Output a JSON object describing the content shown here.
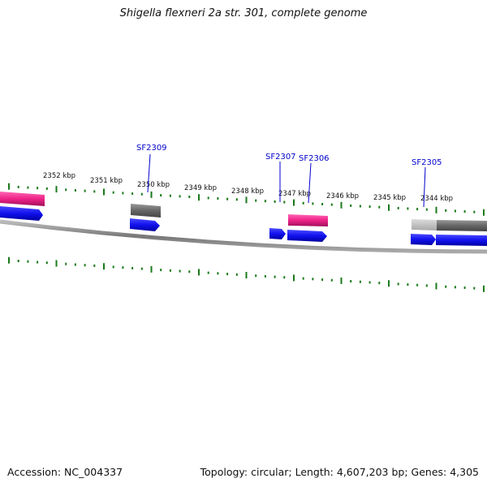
{
  "title": "Shigella flexneri 2a str. 301, complete genome",
  "footer": {
    "accession": "Accession: NC_004337",
    "summary": "Topology: circular; Length: 4,607,203 bp; Genes: 4,305"
  },
  "colors": {
    "tick": "#1a7a1a",
    "backbone": "#8a8a8a",
    "gene_pink": "#ee2288",
    "gene_blue": "#1111ee",
    "gene_gray": "#666666",
    "gene_lightgray": "#bbbbbb",
    "label_blue": "#0000cc"
  },
  "ruler": {
    "unit": "kbp",
    "labels": [
      "2352 kbp",
      "2351 kbp",
      "2350 kbp",
      "2349 kbp",
      "2348 kbp",
      "2347 kbp",
      "2346 kbp",
      "2345 kbp",
      "2344 kbp"
    ]
  },
  "gene_labels": [
    "SF2309",
    "SF2307",
    "SF2306",
    "SF2305"
  ]
}
